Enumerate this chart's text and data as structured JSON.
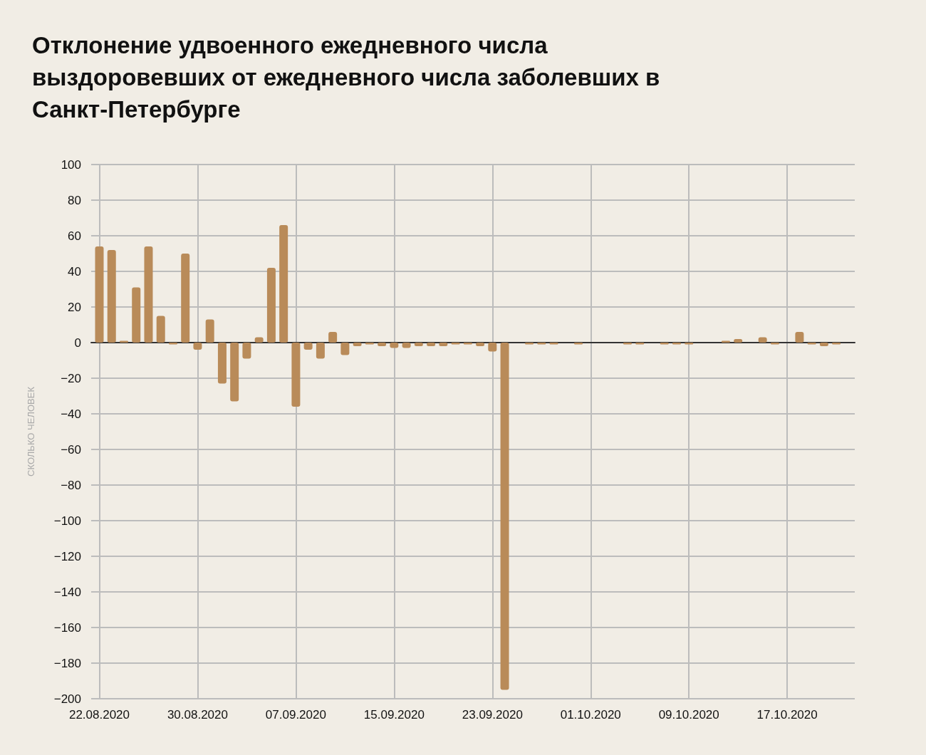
{
  "chart_data": {
    "type": "bar",
    "title": "Отклонение удвоенного ежедневного числа выздоровевших от ежедневного числа заболевших в Санкт-Петербурге",
    "ylabel": "СКОЛЬКО ЧЕЛОВЕК",
    "x": [
      "2020-08-22",
      "2020-08-23",
      "2020-08-24",
      "2020-08-25",
      "2020-08-26",
      "2020-08-27",
      "2020-08-28",
      "2020-08-29",
      "2020-08-30",
      "2020-08-31",
      "2020-09-01",
      "2020-09-02",
      "2020-09-03",
      "2020-09-04",
      "2020-09-05",
      "2020-09-06",
      "2020-09-07",
      "2020-09-08",
      "2020-09-09",
      "2020-09-10",
      "2020-09-11",
      "2020-09-12",
      "2020-09-13",
      "2020-09-14",
      "2020-09-15",
      "2020-09-16",
      "2020-09-17",
      "2020-09-18",
      "2020-09-19",
      "2020-09-20",
      "2020-09-21",
      "2020-09-22",
      "2020-09-23",
      "2020-09-24",
      "2020-09-25",
      "2020-09-26",
      "2020-09-27",
      "2020-09-28",
      "2020-09-29",
      "2020-09-30",
      "2020-10-01",
      "2020-10-02",
      "2020-10-03",
      "2020-10-04",
      "2020-10-05",
      "2020-10-06",
      "2020-10-07",
      "2020-10-08",
      "2020-10-09",
      "2020-10-10",
      "2020-10-11",
      "2020-10-12",
      "2020-10-13",
      "2020-10-14",
      "2020-10-15",
      "2020-10-16",
      "2020-10-17",
      "2020-10-18",
      "2020-10-19",
      "2020-10-20",
      "2020-10-21"
    ],
    "values": [
      54,
      52,
      1,
      31,
      54,
      15,
      -1,
      50,
      -4,
      13,
      -23,
      -33,
      -9,
      3,
      42,
      66,
      -36,
      -4,
      -9,
      6,
      -7,
      -2,
      -1,
      -2,
      -3,
      -3,
      -2,
      -2,
      -2,
      -1,
      -1,
      -2,
      -5,
      -195,
      0,
      -1,
      -1,
      -1,
      0,
      -1,
      0,
      0,
      0,
      -1,
      -1,
      0,
      -1,
      -1,
      -1,
      0,
      0,
      1,
      2,
      0,
      3,
      -1,
      0,
      6,
      -1,
      -2,
      -1
    ],
    "color": "#b98b59",
    "xlim": [
      "2020-08-21T08:00",
      "2020-10-22T12:00"
    ],
    "xticks": [
      {
        "value": "2020-08-22",
        "label": "22.08.2020"
      },
      {
        "value": "2020-08-30",
        "label": "30.08.2020"
      },
      {
        "value": "2020-09-07",
        "label": "07.09.2020"
      },
      {
        "value": "2020-09-15",
        "label": "15.09.2020"
      },
      {
        "value": "2020-09-23",
        "label": "23.09.2020"
      },
      {
        "value": "2020-10-01",
        "label": "01.10.2020"
      },
      {
        "value": "2020-10-09",
        "label": "09.10.2020"
      },
      {
        "value": "2020-10-17",
        "label": "17.10.2020"
      }
    ],
    "ylim": [
      -200,
      100
    ],
    "yticks": [
      {
        "value": -200,
        "label": "−200"
      },
      {
        "value": -180,
        "label": "−180"
      },
      {
        "value": -160,
        "label": "−160"
      },
      {
        "value": -140,
        "label": "−140"
      },
      {
        "value": -120,
        "label": "−120"
      },
      {
        "value": -100,
        "label": "−100"
      },
      {
        "value": -80,
        "label": "−80"
      },
      {
        "value": -60,
        "label": "−60"
      },
      {
        "value": -40,
        "label": "−40"
      },
      {
        "value": -20,
        "label": "−20"
      },
      0,
      20,
      40,
      60,
      80,
      100
    ],
    "grid": true
  }
}
